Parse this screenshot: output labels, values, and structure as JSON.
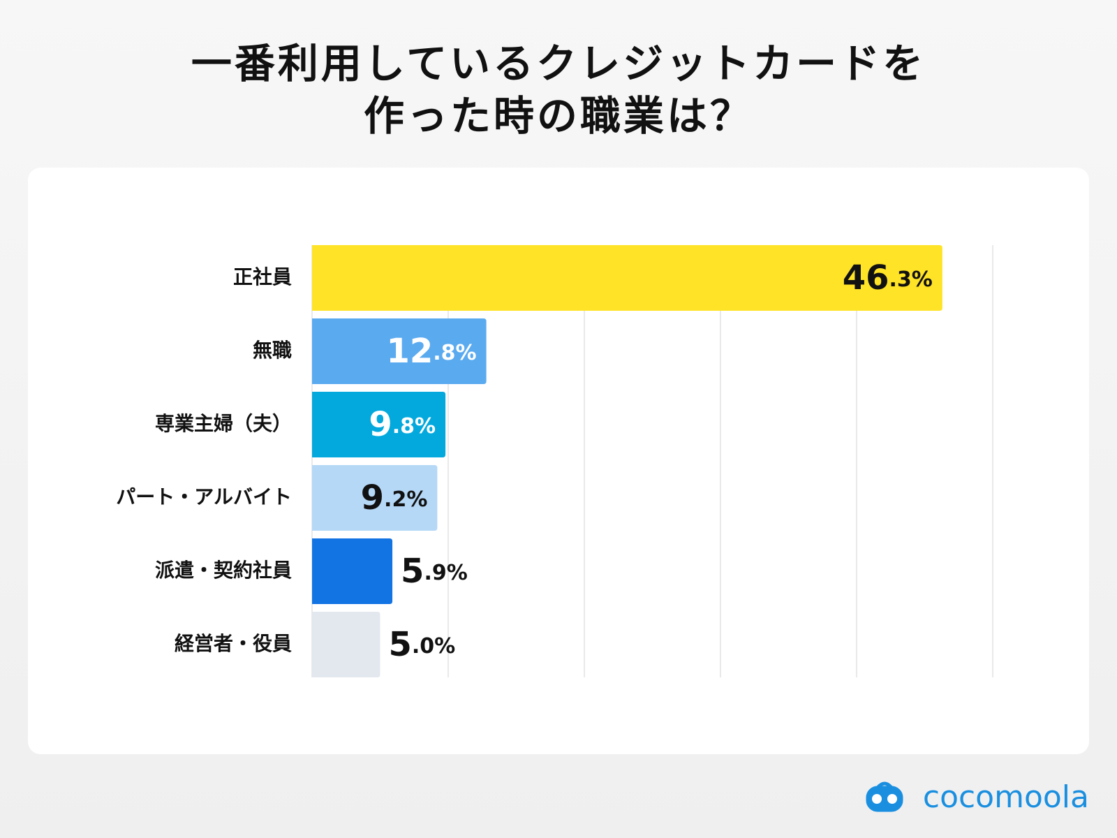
{
  "chart_data": {
    "type": "hbar",
    "title": [
      "一番利用しているクレジットカードを",
      "作った時の職業は？"
    ],
    "categories": [
      "正社員",
      "無職",
      "専業主婦（夫）",
      "パート・アルバイト",
      "派遣・契約社員",
      "経営者・役員"
    ],
    "values": [
      46.3,
      12.8,
      9.8,
      9.2,
      5.9,
      5.0
    ],
    "value_labels": [
      "46.3%",
      "12.8%",
      "9.8%",
      "9.2%",
      "5.9%",
      "5.0%"
    ],
    "colors": [
      "#ffe326",
      "#5aaaf0",
      "#03a9dd",
      "#b5d8f7",
      "#1273e3",
      "#e3e8ef"
    ],
    "xlim": [
      0,
      50
    ],
    "xticks": [
      0,
      10,
      20,
      30,
      40,
      50
    ],
    "grid": true
  },
  "logo": "cocomoola"
}
